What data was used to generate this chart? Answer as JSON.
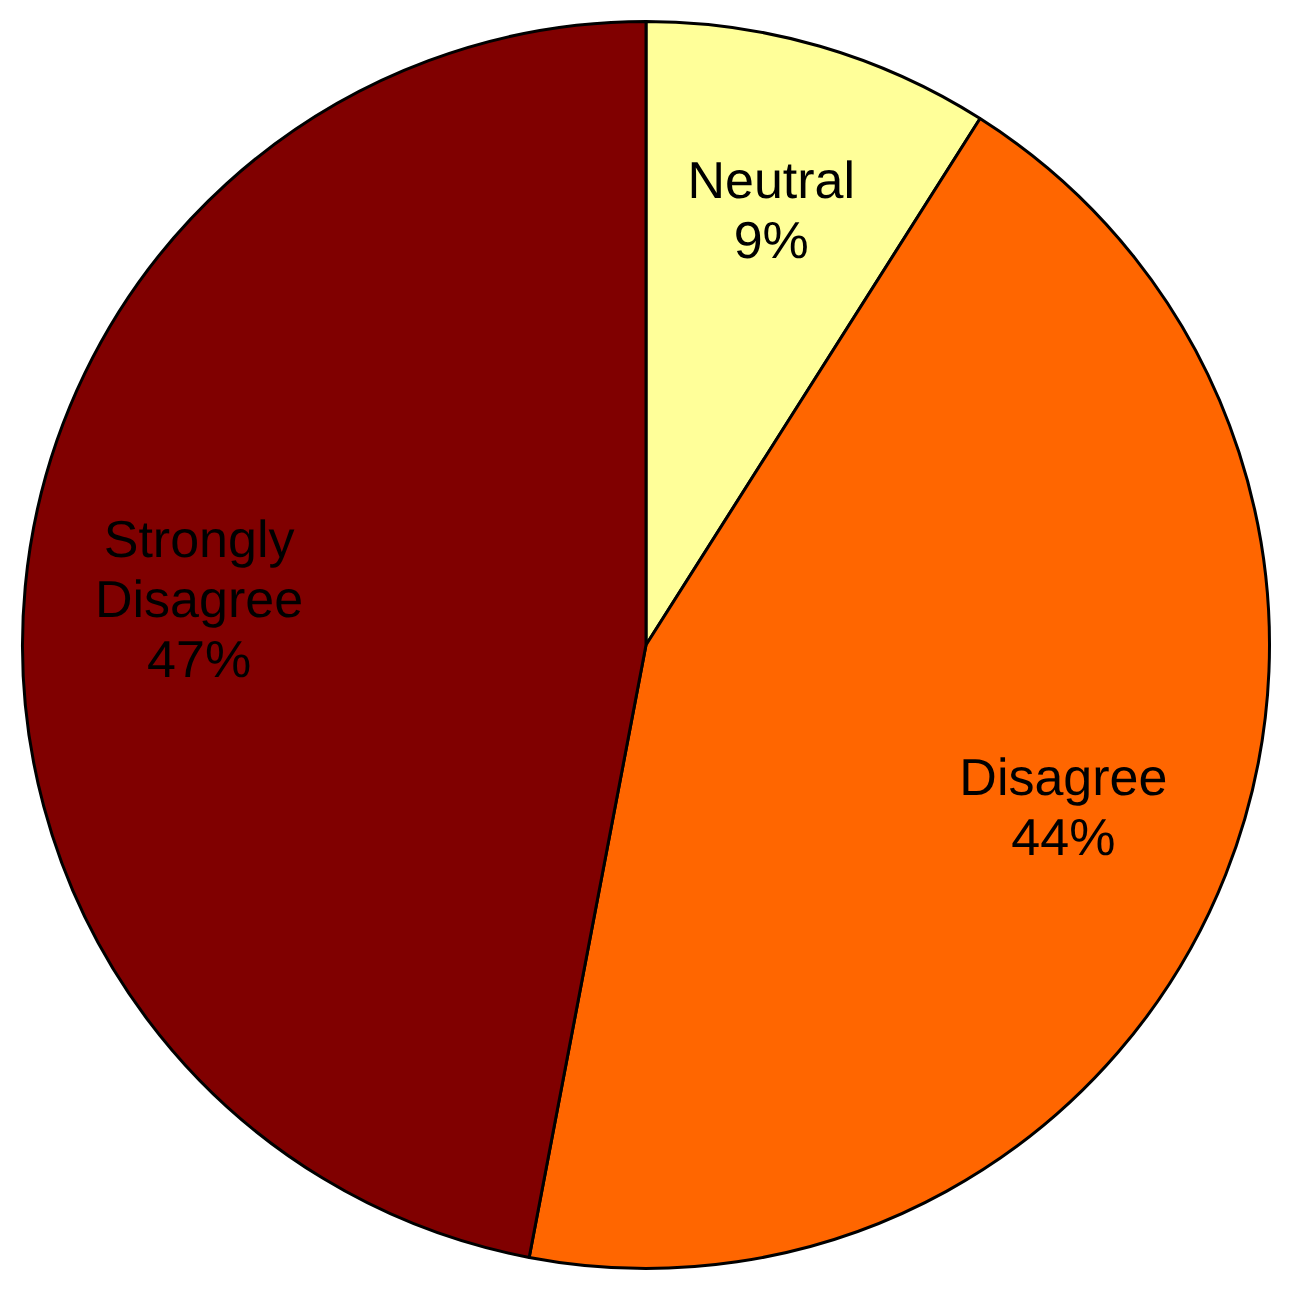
{
  "chart_data": {
    "type": "pie",
    "categories": [
      "Neutral",
      "Disagree",
      "Strongly Disagree"
    ],
    "values": [
      9,
      44,
      47
    ],
    "colors": [
      "#ffff99",
      "#ff6600",
      "#800000"
    ],
    "value_labels": [
      "9%",
      "44%",
      "47%"
    ],
    "legend": false
  }
}
